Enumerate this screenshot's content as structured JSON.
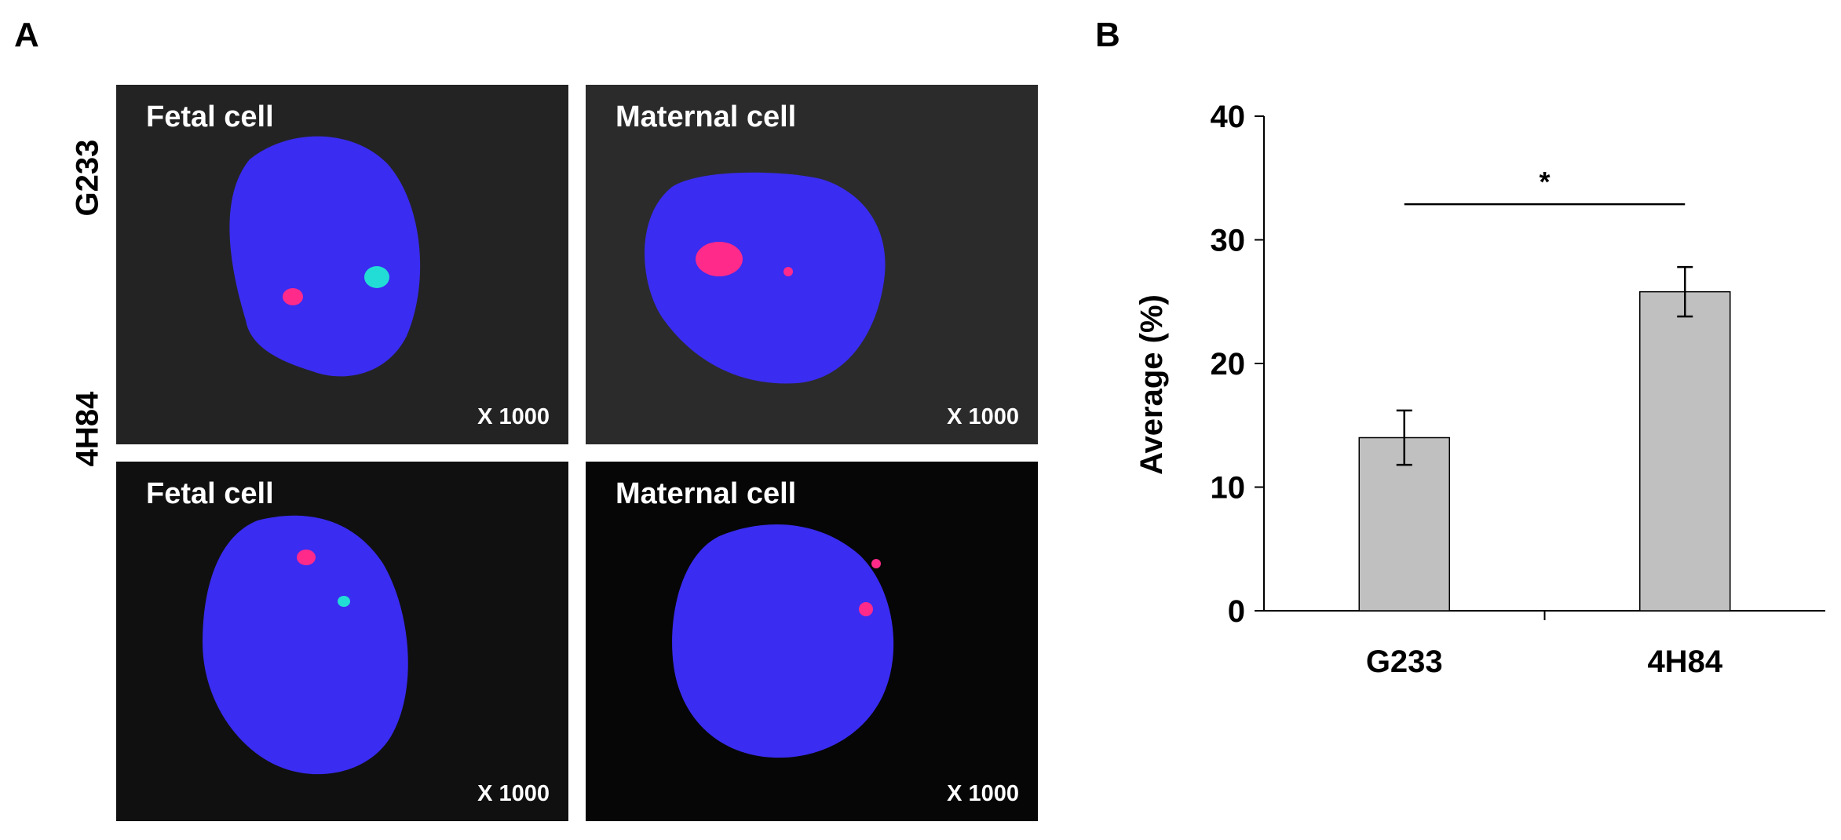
{
  "figure": {
    "panel_a_label": "A",
    "panel_b_label": "B"
  },
  "micrographs": {
    "row_labels": [
      "G233",
      "4H84"
    ],
    "panels": [
      {
        "title": "Fetal cell",
        "magnification": "X 1000",
        "background": "#232323"
      },
      {
        "title": "Maternal cell",
        "magnification": "X 1000",
        "background": "#2b2b2b"
      },
      {
        "title": "Fetal cell",
        "magnification": "X 1000",
        "background": "#101010"
      },
      {
        "title": "Maternal cell",
        "magnification": "X 1000",
        "background": "#060606"
      }
    ],
    "colors": {
      "nucleus": "#3a2cf0",
      "red_signal": "#ff2a8a",
      "green_signal": "#22ddd6"
    }
  },
  "chart_data": {
    "type": "bar",
    "categories": [
      "G233",
      "4H84"
    ],
    "values": [
      14,
      25.8
    ],
    "errors": [
      2.2,
      2
    ],
    "ylabel": "Average (%)",
    "ylim": [
      0,
      40
    ],
    "yticks": [
      0,
      10,
      20,
      30,
      40
    ],
    "grid": false,
    "bar_color": "#c0c0c0",
    "significance": {
      "from": 0,
      "to": 1,
      "label": "*"
    }
  }
}
